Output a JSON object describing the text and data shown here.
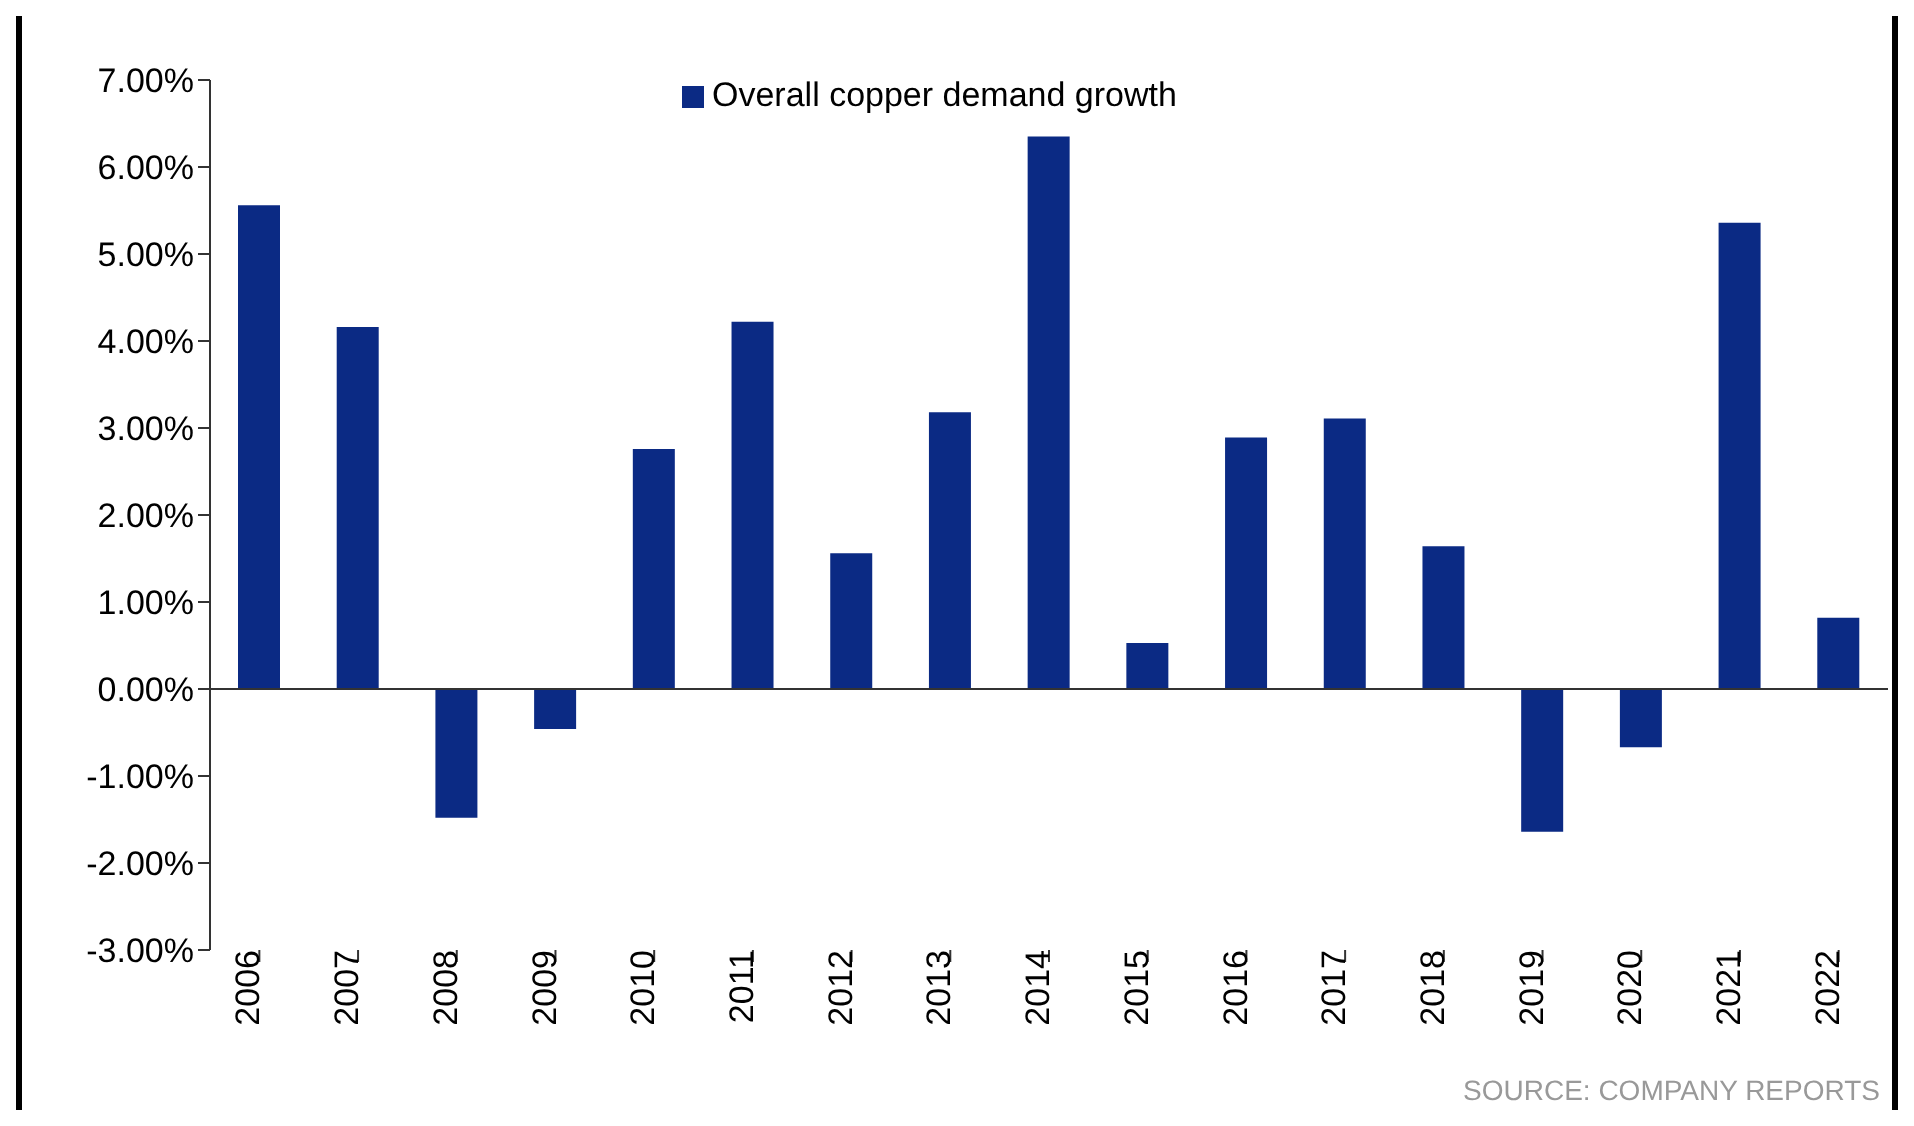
{
  "chart_data": {
    "type": "bar",
    "categories": [
      "2006",
      "2007",
      "2008",
      "2009",
      "2010",
      "2011",
      "2012",
      "2013",
      "2014",
      "2015",
      "2016",
      "2017",
      "2018",
      "2019",
      "2020",
      "2021",
      "2022"
    ],
    "series": [
      {
        "name": "Overall copper demand growth",
        "color": "#0b2a84",
        "values": [
          5.56,
          4.16,
          -1.48,
          -0.46,
          2.76,
          4.22,
          1.56,
          3.18,
          6.35,
          0.53,
          2.89,
          3.11,
          1.64,
          -1.64,
          -0.67,
          5.36,
          0.82
        ]
      }
    ],
    "ylim": [
      -3,
      7
    ],
    "yticks": [
      {
        "value": -3,
        "label": "-3.00%"
      },
      {
        "value": -2,
        "label": "-2.00%"
      },
      {
        "value": -1,
        "label": "-1.00%"
      },
      {
        "value": 0,
        "label": "0.00%"
      },
      {
        "value": 1,
        "label": "1.00%"
      },
      {
        "value": 2,
        "label": "2.00%"
      },
      {
        "value": 3,
        "label": "3.00%"
      },
      {
        "value": 4,
        "label": "4.00%"
      },
      {
        "value": 5,
        "label": "5.00%"
      },
      {
        "value": 6,
        "label": "6.00%"
      },
      {
        "value": 7,
        "label": "7.00%"
      }
    ],
    "legend": "top",
    "annotations": [
      "SOURCE: COMPANY REPORTS"
    ]
  }
}
